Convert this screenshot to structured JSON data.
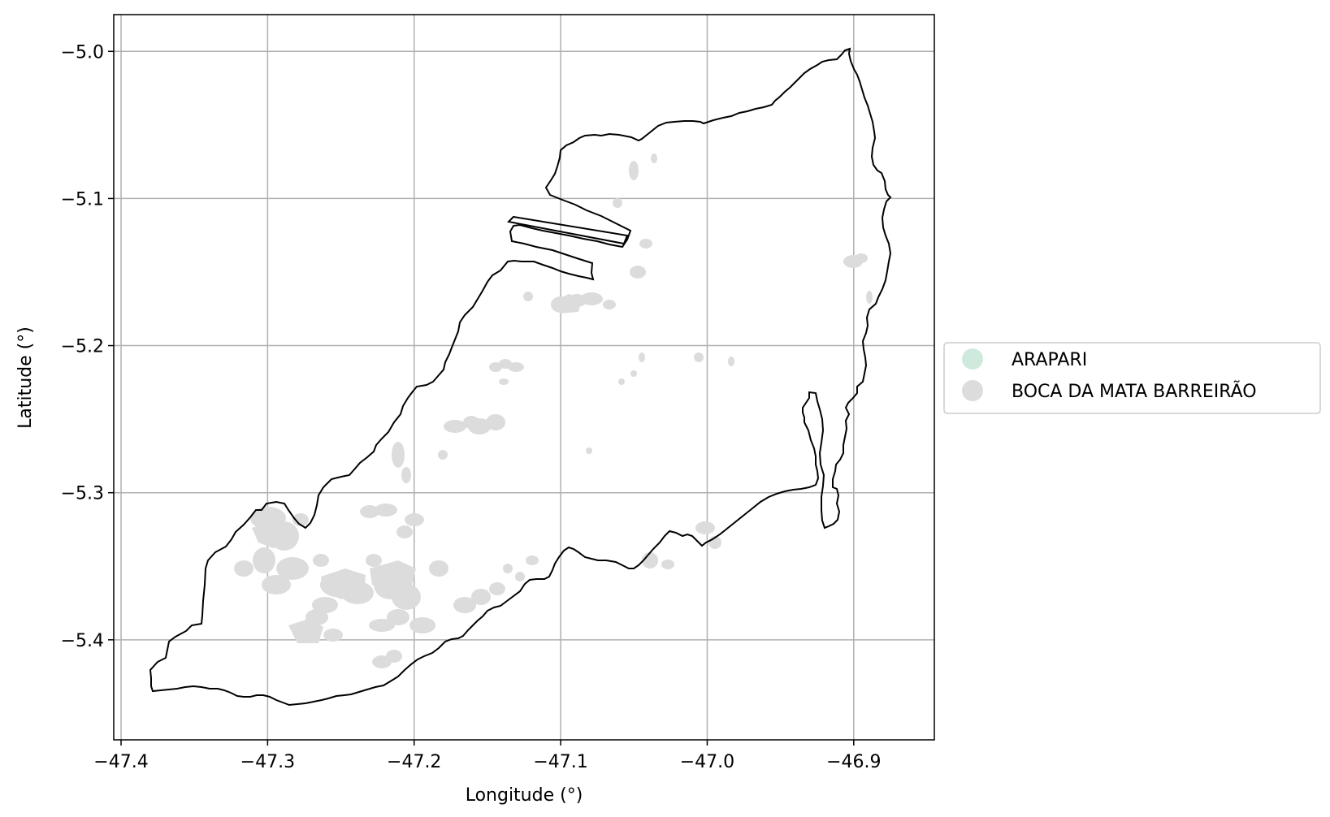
{
  "map": {
    "xlabel": "Longitude (°)",
    "ylabel": "Latitude (°)",
    "xlim": [
      -47.405,
      -46.845
    ],
    "ylim": [
      -5.468,
      -4.975
    ],
    "grid": true,
    "x_ticks": [
      {
        "value": -47.4,
        "label": "−47.4"
      },
      {
        "value": -47.3,
        "label": "−47.3"
      },
      {
        "value": -47.2,
        "label": "−47.2"
      },
      {
        "value": -47.1,
        "label": "−47.1"
      },
      {
        "value": -47.0,
        "label": "−47.0"
      },
      {
        "value": -46.9,
        "label": "−46.9"
      }
    ],
    "y_ticks": [
      {
        "value": -5.0,
        "label": "−5.0"
      },
      {
        "value": -5.1,
        "label": "−5.1"
      },
      {
        "value": -5.2,
        "label": "−5.2"
      },
      {
        "value": -5.3,
        "label": "−5.3"
      },
      {
        "value": -5.4,
        "label": "−5.4"
      }
    ],
    "legend": {
      "placement": "right",
      "entries": [
        {
          "label": "ARAPARI",
          "color": "#cfe9dc"
        },
        {
          "label": "BOCA DA MATA BARREIRÃO",
          "color": "#dcdcdc"
        }
      ]
    },
    "boundary_color": "#000000",
    "patch_color": "#dcdcdc",
    "grid_color": "#b0b0b0"
  }
}
